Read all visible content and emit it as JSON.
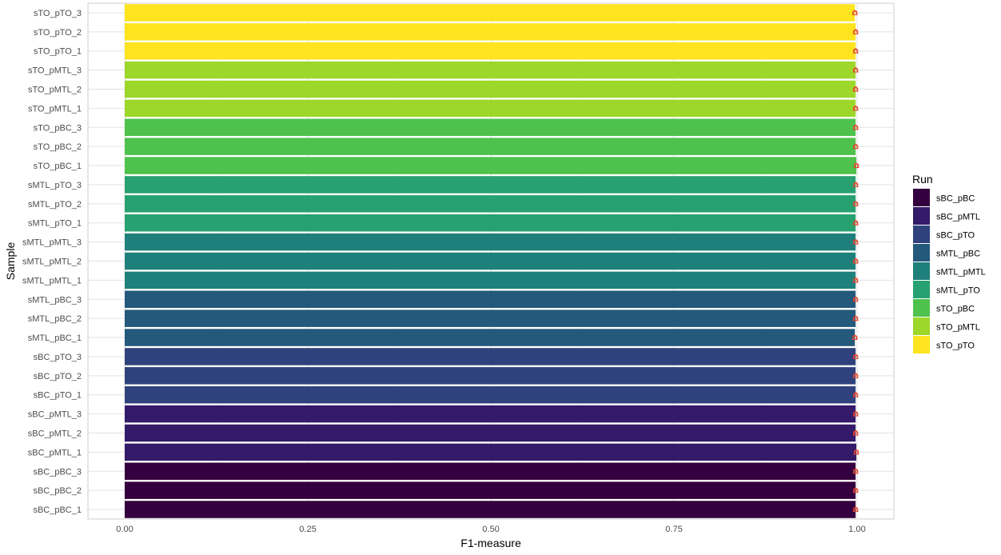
{
  "chart_data": {
    "type": "bar",
    "orientation": "horizontal",
    "xlabel": "F1-measure",
    "ylabel": "Sample",
    "xlim": [
      0,
      1
    ],
    "x_ticks": [
      "0.00",
      "0.25",
      "0.50",
      "0.75",
      "1.00"
    ],
    "grid": true,
    "legend": {
      "title": "Run",
      "position": "right",
      "entries": [
        {
          "name": "sBC_pBC",
          "color": "#35003f"
        },
        {
          "name": "sBC_pMTL",
          "color": "#341b69"
        },
        {
          "name": "sBC_pTO",
          "color": "#2f427d"
        },
        {
          "name": "sMTL_pBC",
          "color": "#23597b"
        },
        {
          "name": "sMTL_pMTL",
          "color": "#1f807b"
        },
        {
          "name": "sMTL_pTO",
          "color": "#27a16f"
        },
        {
          "name": "sTO_pBC",
          "color": "#4ec24c"
        },
        {
          "name": "sTO_pMTL",
          "color": "#9cd72a"
        },
        {
          "name": "sTO_pTO",
          "color": "#fde41f"
        }
      ]
    },
    "categories": [
      "sBC_pBC_1",
      "sBC_pBC_2",
      "sBC_pBC_3",
      "sBC_pMTL_1",
      "sBC_pMTL_2",
      "sBC_pMTL_3",
      "sBC_pTO_1",
      "sBC_pTO_2",
      "sBC_pTO_3",
      "sMTL_pBC_1",
      "sMTL_pBC_2",
      "sMTL_pBC_3",
      "sMTL_pMTL_1",
      "sMTL_pMTL_2",
      "sMTL_pMTL_3",
      "sMTL_pTO_1",
      "sMTL_pTO_2",
      "sMTL_pTO_3",
      "sTO_pBC_1",
      "sTO_pBC_2",
      "sTO_pBC_3",
      "sTO_pMTL_1",
      "sTO_pMTL_2",
      "sTO_pMTL_3",
      "sTO_pTO_1",
      "sTO_pTO_2",
      "sTO_pTO_3"
    ],
    "runs": [
      "sBC_pBC",
      "sBC_pBC",
      "sBC_pBC",
      "sBC_pMTL",
      "sBC_pMTL",
      "sBC_pMTL",
      "sBC_pTO",
      "sBC_pTO",
      "sBC_pTO",
      "sMTL_pBC",
      "sMTL_pBC",
      "sMTL_pBC",
      "sMTL_pMTL",
      "sMTL_pMTL",
      "sMTL_pMTL",
      "sMTL_pTO",
      "sMTL_pTO",
      "sMTL_pTO",
      "sTO_pBC",
      "sTO_pBC",
      "sTO_pBC",
      "sTO_pMTL",
      "sTO_pMTL",
      "sTO_pMTL",
      "sTO_pTO",
      "sTO_pTO",
      "sTO_pTO"
    ],
    "values": [
      0.998,
      0.998,
      0.998,
      0.999,
      0.998,
      0.998,
      0.998,
      0.998,
      0.998,
      0.997,
      0.998,
      0.998,
      0.998,
      0.998,
      0.998,
      0.998,
      0.998,
      0.998,
      0.999,
      0.998,
      0.998,
      0.998,
      0.998,
      0.998,
      0.998,
      0.998,
      0.997
    ],
    "marker_color": "#e8452c"
  }
}
